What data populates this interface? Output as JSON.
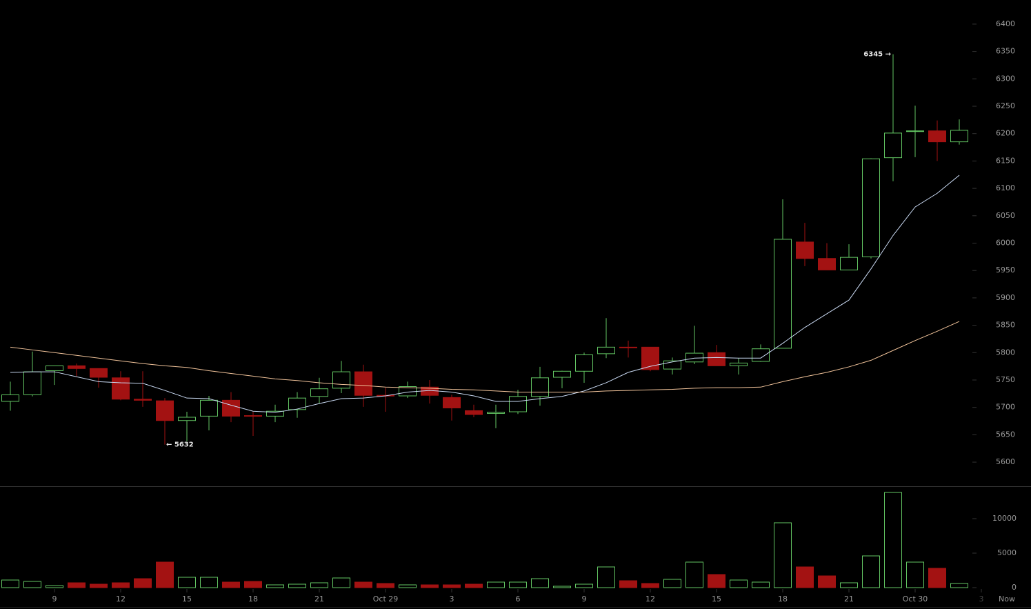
{
  "chart_data": {
    "type": "candlestick",
    "categories": [
      null,
      null,
      "9",
      null,
      null,
      "12",
      null,
      null,
      "15",
      null,
      null,
      "18",
      null,
      null,
      "21",
      null,
      null,
      "Oct 29",
      null,
      null,
      "3",
      null,
      null,
      "6",
      null,
      null,
      "9",
      null,
      null,
      "12",
      null,
      null,
      "15",
      null,
      null,
      "18",
      null,
      null,
      "21",
      null,
      null,
      "Oct 30",
      null,
      null,
      "3"
    ],
    "now_label": "Now",
    "open": [
      5711,
      5723,
      5767,
      5776,
      5771,
      5754,
      5715,
      5712,
      5676,
      5684,
      5713,
      5685,
      5684,
      5696,
      5720,
      5735,
      5765,
      5722,
      5721,
      5737,
      5718,
      5694,
      5689,
      5692,
      5720,
      5755,
      5766,
      5798,
      5810,
      5810,
      5770,
      5783,
      5800,
      5776,
      5784,
      5808,
      6002,
      5972,
      5951,
      5975,
      6156,
      6204,
      6205,
      6185,
      null
    ],
    "high": [
      5747,
      5802,
      5776,
      5780,
      5771,
      5766,
      5766,
      5717,
      5692,
      5721,
      5728,
      5692,
      5705,
      5728,
      5754,
      5785,
      5778,
      5736,
      5747,
      5750,
      5723,
      5705,
      5705,
      5732,
      5774,
      5767,
      5800,
      5863,
      5822,
      5810,
      5791,
      5849,
      5814,
      5790,
      5815,
      6080,
      6037,
      6000,
      5998,
      6155,
      6345,
      6251,
      6224,
      6226,
      null
    ],
    "low": [
      5694,
      5720,
      5741,
      5757,
      5736,
      5713,
      5701,
      5632,
      5638,
      5658,
      5673,
      5648,
      5673,
      5681,
      5707,
      5726,
      5701,
      5692,
      5717,
      5707,
      5676,
      5682,
      5662,
      5688,
      5703,
      5735,
      5745,
      5790,
      5791,
      5766,
      5760,
      5779,
      5776,
      5760,
      5783,
      5808,
      5958,
      5951,
      5951,
      5972,
      6113,
      6157,
      6150,
      6180,
      null
    ],
    "close": [
      5723,
      5765,
      5776,
      5771,
      5755,
      5715,
      5713,
      5676,
      5682,
      5713,
      5684,
      5684,
      5693,
      5717,
      5734,
      5765,
      5722,
      5721,
      5738,
      5722,
      5699,
      5687,
      5691,
      5720,
      5754,
      5766,
      5796,
      5810,
      5809,
      5769,
      5785,
      5799,
      5776,
      5781,
      5807,
      6007,
      5972,
      5951,
      5974,
      6154,
      6201,
      6205,
      6185,
      6206,
      null
    ],
    "volume": [
      1100,
      900,
      300,
      700,
      500,
      700,
      1300,
      3700,
      1500,
      1500,
      800,
      900,
      400,
      500,
      700,
      1400,
      800,
      600,
      400,
      400,
      400,
      500,
      800,
      800,
      1300,
      200,
      500,
      3000,
      1000,
      600,
      1200,
      3700,
      1900,
      1100,
      800,
      9400,
      3000,
      1700,
      700,
      4600,
      13800,
      3700,
      2800,
      600,
      null
    ],
    "ma_fast": [
      5764,
      5765,
      5765,
      5756,
      5747,
      5745,
      5744,
      5731,
      5717,
      5716,
      5704,
      5693,
      5691,
      5697,
      5707,
      5716,
      5717,
      5721,
      5728,
      5731,
      5728,
      5721,
      5711,
      5711,
      5716,
      5720,
      5730,
      5745,
      5764,
      5775,
      5783,
      5790,
      5791,
      5790,
      5790,
      5817,
      5846,
      5871,
      5896,
      5953,
      6014,
      6066,
      6091,
      6124,
      null
    ],
    "ma_slow": [
      5810,
      5805,
      5800,
      5795,
      5790,
      5785,
      5780,
      5776,
      5773,
      5767,
      5762,
      5757,
      5752,
      5749,
      5745,
      5742,
      5740,
      5737,
      5736,
      5735,
      5733,
      5732,
      5730,
      5728,
      5728,
      5728,
      5728,
      5730,
      5731,
      5732,
      5733,
      5735,
      5736,
      5736,
      5737,
      5747,
      5756,
      5764,
      5774,
      5786,
      5804,
      5822,
      5839,
      5857,
      null
    ],
    "annotations": [
      "6345 →",
      "← 5632"
    ],
    "up_color": "#63c663",
    "down_color": "#a31212",
    "ma_fast_color": "#c9d9f2",
    "ma_slow_color": "#f2c49b",
    "ylim": [
      5556,
      6444
    ],
    "yticks": [
      5600,
      5650,
      5700,
      5750,
      5800,
      5850,
      5900,
      5950,
      6000,
      6050,
      6100,
      6150,
      6200,
      6250,
      6300,
      6350,
      6400
    ],
    "volume_ylim": [
      -600,
      14600
    ],
    "volume_yticks": [
      0,
      5000,
      10000
    ]
  }
}
